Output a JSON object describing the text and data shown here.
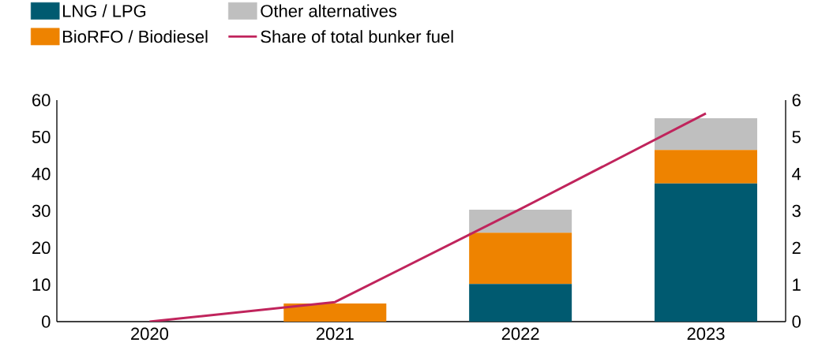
{
  "chart_data": {
    "type": "bar",
    "stacked": true,
    "categories": [
      "2020",
      "2021",
      "2022",
      "2023"
    ],
    "series": [
      {
        "name": "LNG / LPG",
        "color": "#005a70",
        "values": [
          0,
          0,
          10.2,
          37.4
        ]
      },
      {
        "name": "BioRFO / Biodiesel",
        "color": "#ee8300",
        "values": [
          0,
          4.9,
          13.9,
          9.1
        ]
      },
      {
        "name": "Other alternatives",
        "color": "#bfbfbf",
        "values": [
          0,
          0,
          6.2,
          8.6
        ]
      },
      {
        "name": "Share of total bunker fuel",
        "type": "line",
        "axis": "y2",
        "color": "#c0245c",
        "values": [
          0,
          0.53,
          3.05,
          5.64
        ]
      }
    ],
    "ylim": [
      0,
      60
    ],
    "yticks": [
      0,
      10,
      20,
      30,
      40,
      50,
      60
    ],
    "y2lim": [
      0,
      6
    ],
    "y2ticks": [
      0,
      1,
      2,
      3,
      4,
      5,
      6
    ],
    "legend": "top left",
    "grid": false,
    "marker": "none"
  }
}
